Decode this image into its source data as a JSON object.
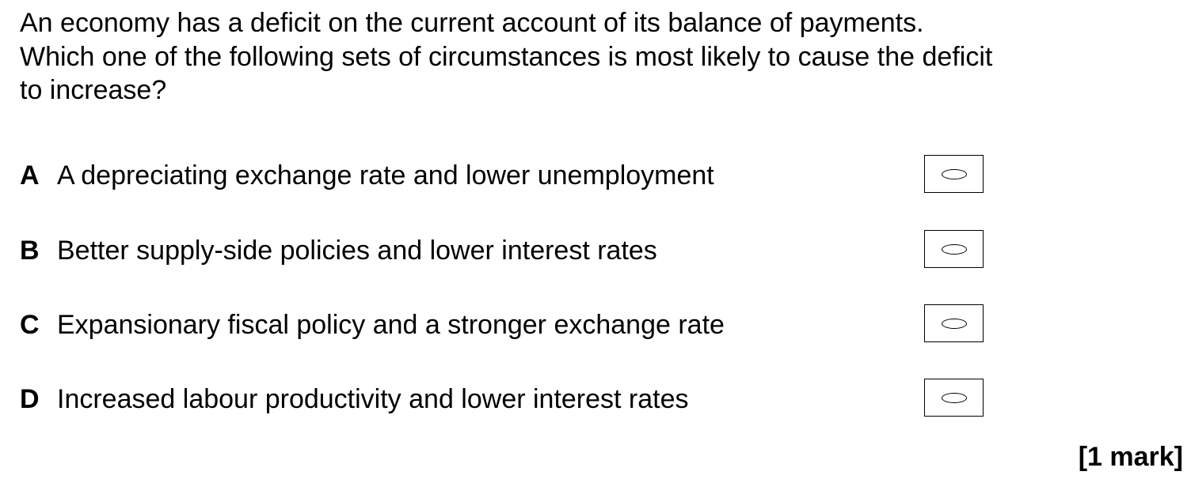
{
  "question": {
    "line1": "An economy has a deficit on the current account of its balance of payments.",
    "line2": "Which one of the following sets of circumstances is most likely to cause the deficit",
    "line3": "to increase?"
  },
  "options": [
    {
      "letter": "A",
      "text": "A depreciating exchange rate and lower unemployment",
      "selected": false
    },
    {
      "letter": "B",
      "text": "Better supply-side policies and lower interest rates",
      "selected": false
    },
    {
      "letter": "C",
      "text": "Expansionary fiscal policy and a stronger exchange rate",
      "selected": false
    },
    {
      "letter": "D",
      "text": "Increased labour productivity and lower interest rates",
      "selected": false
    }
  ],
  "marks": "[1 mark]"
}
